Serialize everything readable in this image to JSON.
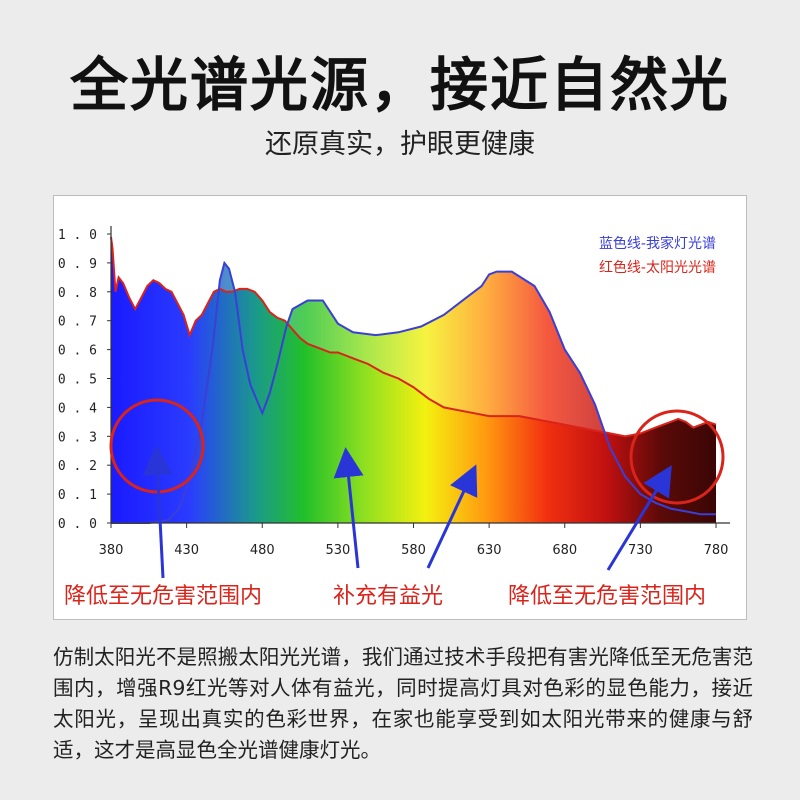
{
  "title": "全光谱光源，接近自然光",
  "subtitle": "还原真实，护眼更健康",
  "legend": {
    "blue": "蓝色线-我家灯光谱",
    "red": "红色线-太阳光光谱"
  },
  "labels": {
    "left": "降低至无危害范围内",
    "middle": "补充有益光",
    "right": "降低至无危害范围内"
  },
  "body": "仿制太阳光不是照搬太阳光光谱，我们通过技术手段把有害光降低至无危害范围内，增强R9红光等对人体有益光，同时提高灯具对色彩的显色能力，接近太阳光，呈现出真实的色彩世界，在家也能享受到如太阳光带来的健康与舒适，这才是高显色全光谱健康灯光。",
  "colors": {
    "blue_line": "#3a3fd6",
    "red_line": "#d9241b",
    "annotation": "#d9241b",
    "arrow": "#2a35d8"
  },
  "chart_data": {
    "type": "area",
    "xlim": [
      380,
      780
    ],
    "ylim": [
      0,
      1.0
    ],
    "x_ticks": [
      "380",
      "430",
      "480",
      "530",
      "580",
      "630",
      "680",
      "730",
      "780"
    ],
    "y_ticks": [
      "0.0",
      "0.1",
      "0.2",
      "0.3",
      "0.4",
      "0.5",
      "0.6",
      "0.7",
      "0.8",
      "0.9",
      "1.0"
    ],
    "grid": false,
    "legend_position": "top-right",
    "series": [
      {
        "name": "蓝色线-我家灯光谱",
        "color": "#3a3fd6",
        "x": [
          380,
          405,
          418,
          425,
          432,
          440,
          447,
          452,
          455,
          458,
          462,
          467,
          472,
          480,
          485,
          490,
          496,
          500,
          510,
          520,
          530,
          540,
          555,
          570,
          585,
          600,
          615,
          625,
          630,
          635,
          645,
          660,
          670,
          680,
          690,
          700,
          710,
          720,
          730,
          740,
          750,
          760,
          770,
          780
        ],
        "y": [
          0.0,
          0.0,
          0.01,
          0.05,
          0.15,
          0.35,
          0.6,
          0.84,
          0.9,
          0.88,
          0.8,
          0.6,
          0.48,
          0.38,
          0.45,
          0.55,
          0.68,
          0.74,
          0.77,
          0.77,
          0.69,
          0.66,
          0.65,
          0.66,
          0.68,
          0.72,
          0.78,
          0.82,
          0.86,
          0.87,
          0.87,
          0.82,
          0.73,
          0.6,
          0.52,
          0.41,
          0.26,
          0.16,
          0.1,
          0.07,
          0.05,
          0.04,
          0.03,
          0.03
        ]
      },
      {
        "name": "红色线-太阳光光谱",
        "color": "#d9241b",
        "x": [
          380,
          381,
          383,
          385,
          388,
          392,
          396,
          400,
          404,
          408,
          412,
          416,
          420,
          424,
          428,
          432,
          436,
          440,
          444,
          448,
          452,
          456,
          460,
          465,
          470,
          475,
          480,
          485,
          490,
          495,
          500,
          505,
          510,
          515,
          520,
          525,
          530,
          540,
          550,
          560,
          570,
          580,
          590,
          600,
          610,
          620,
          630,
          640,
          650,
          660,
          670,
          680,
          690,
          700,
          710,
          720,
          730,
          735,
          740,
          745,
          750,
          755,
          760,
          765,
          770,
          775,
          780
        ],
        "y": [
          0.99,
          0.95,
          0.8,
          0.85,
          0.83,
          0.78,
          0.74,
          0.78,
          0.82,
          0.84,
          0.83,
          0.81,
          0.8,
          0.76,
          0.72,
          0.65,
          0.7,
          0.72,
          0.76,
          0.8,
          0.81,
          0.8,
          0.8,
          0.81,
          0.81,
          0.8,
          0.77,
          0.73,
          0.71,
          0.7,
          0.67,
          0.64,
          0.62,
          0.61,
          0.6,
          0.59,
          0.59,
          0.57,
          0.55,
          0.52,
          0.5,
          0.47,
          0.43,
          0.4,
          0.39,
          0.38,
          0.37,
          0.37,
          0.37,
          0.36,
          0.35,
          0.34,
          0.33,
          0.32,
          0.31,
          0.3,
          0.31,
          0.32,
          0.33,
          0.34,
          0.35,
          0.36,
          0.35,
          0.33,
          0.34,
          0.35,
          0.34
        ]
      }
    ]
  }
}
